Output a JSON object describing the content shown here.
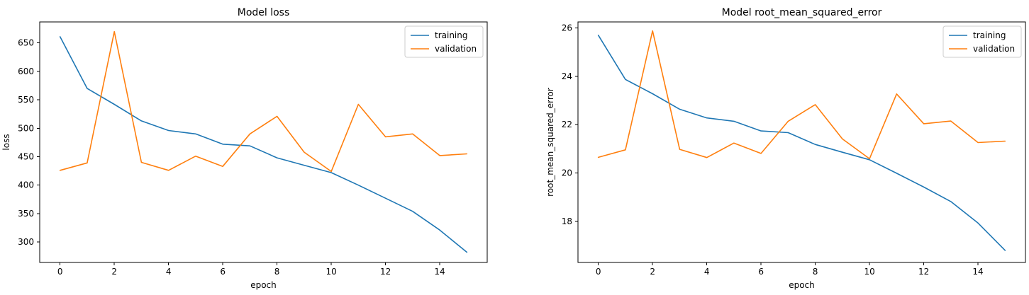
{
  "chart_data": [
    {
      "type": "line",
      "title": "Model loss",
      "xlabel": "epoch",
      "ylabel": "loss",
      "x": [
        0,
        1,
        2,
        3,
        4,
        5,
        6,
        7,
        8,
        9,
        10,
        11,
        12,
        13,
        14,
        15
      ],
      "xlim": [
        -0.75,
        15.75
      ],
      "ylim": [
        264,
        687
      ],
      "xticks": [
        0,
        2,
        4,
        6,
        8,
        10,
        12,
        14
      ],
      "yticks": [
        300,
        350,
        400,
        450,
        500,
        550,
        600,
        650
      ],
      "grid": false,
      "legend_position": "top-right",
      "series": [
        {
          "name": "training",
          "color": "#1f77b4",
          "values": [
            661,
            570,
            542,
            513,
            496,
            490,
            472,
            469,
            448,
            435,
            422,
            400,
            377,
            354,
            321,
            282
          ]
        },
        {
          "name": "validation",
          "color": "#ff7f0e",
          "values": [
            426,
            439,
            670,
            440,
            426,
            451,
            433,
            490,
            521,
            458,
            424,
            542,
            485,
            490,
            452,
            455
          ]
        }
      ]
    },
    {
      "type": "line",
      "title": "Model root_mean_squared_error",
      "xlabel": "epoch",
      "ylabel": "root_mean_squared_error",
      "x": [
        0,
        1,
        2,
        3,
        4,
        5,
        6,
        7,
        8,
        9,
        10,
        11,
        12,
        13,
        14,
        15
      ],
      "xlim": [
        -0.75,
        15.75
      ],
      "ylim": [
        16.3,
        26.25
      ],
      "xticks": [
        0,
        2,
        4,
        6,
        8,
        10,
        12,
        14
      ],
      "yticks": [
        18,
        20,
        22,
        24,
        26
      ],
      "grid": false,
      "legend_position": "top-right",
      "series": [
        {
          "name": "training",
          "color": "#1f77b4",
          "values": [
            25.7,
            23.87,
            23.28,
            22.64,
            22.28,
            22.14,
            21.74,
            21.67,
            21.18,
            20.86,
            20.55,
            19.99,
            19.42,
            18.82,
            17.93,
            16.8
          ]
        },
        {
          "name": "validation",
          "color": "#ff7f0e",
          "values": [
            20.65,
            20.96,
            25.88,
            20.98,
            20.64,
            21.24,
            20.81,
            22.14,
            22.83,
            21.41,
            20.59,
            23.27,
            22.04,
            22.15,
            21.26,
            21.32
          ]
        }
      ]
    }
  ]
}
